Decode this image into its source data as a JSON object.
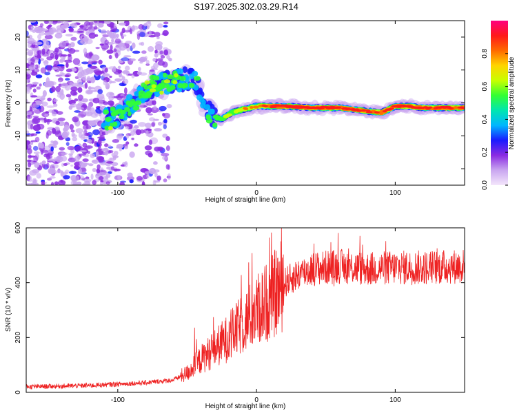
{
  "title": "S197.2025.302.03.29.R14",
  "chart_data": [
    {
      "type": "heatmap",
      "name": "spectrogram",
      "xlabel": "Height of straight line (km)",
      "ylabel": "Frequency (Hz)",
      "xlim": [
        -166,
        150
      ],
      "ylim": [
        -25,
        25
      ],
      "xticks": [
        -100,
        0,
        100
      ],
      "yticks": [
        -20,
        -10,
        0,
        10,
        20
      ],
      "xtick_labels": [
        "-100",
        "0",
        "100"
      ],
      "ytick_labels": [
        "-20",
        "-10",
        "0",
        "10",
        "20"
      ],
      "colorbar": {
        "label": "Normalized spectral amplitude",
        "range": [
          0,
          1
        ],
        "ticks": [
          0.0,
          0.2,
          0.4,
          0.6,
          0.8
        ],
        "tick_labels": [
          "0.0",
          "0.2",
          "0.4",
          "0.6",
          "0.8"
        ],
        "colors": [
          "#f4e6fb",
          "#c9a6f0",
          "#8a2be2",
          "#1a1aff",
          "#00b7ff",
          "#00e6b0",
          "#33ff33",
          "#c8ff00",
          "#ffd400",
          "#ff6a00",
          "#ff1a1a",
          "#ff007f"
        ]
      },
      "ridge": {
        "x": [
          -105,
          -95,
          -85,
          -75,
          -65,
          -55,
          -45,
          -38,
          -32,
          -25,
          -18,
          -10,
          0,
          10,
          20,
          40,
          60,
          70,
          80,
          90,
          95,
          100,
          110,
          120,
          130,
          140,
          148
        ],
        "y": [
          -5,
          -2,
          2,
          5,
          6,
          7,
          8,
          0,
          -4,
          -5,
          -3,
          -2,
          -1,
          -1,
          -1,
          -1.5,
          -1.5,
          -2,
          -2.5,
          -3,
          -2,
          -1,
          -1,
          -1.5,
          -1.5,
          -1.5,
          -1.5
        ],
        "amplitude": [
          0.5,
          0.45,
          0.5,
          0.55,
          0.5,
          0.55,
          0.4,
          0.4,
          0.45,
          0.5,
          0.55,
          0.6,
          0.7,
          0.8,
          0.85,
          0.95,
          0.9,
          0.85,
          0.8,
          0.75,
          0.8,
          0.85,
          0.9,
          0.85,
          0.85,
          0.85,
          0.85
        ]
      }
    },
    {
      "type": "line",
      "name": "snr",
      "xlabel": "Height of straight line (km)",
      "ylabel": "SNR (10 * v/v)",
      "xlim": [
        -166,
        150
      ],
      "ylim": [
        0,
        600
      ],
      "xticks": [
        -100,
        0,
        100
      ],
      "yticks": [
        0,
        200,
        400,
        600
      ],
      "xtick_labels": [
        "-100",
        "0",
        "100"
      ],
      "ytick_labels": [
        "0",
        "200",
        "400",
        "600"
      ],
      "color": "#ee2222",
      "trend": {
        "x": [
          -166,
          -120,
          -100,
          -80,
          -60,
          -50,
          -40,
          -30,
          -20,
          -10,
          0,
          10,
          20,
          30,
          40,
          60,
          80,
          100,
          120,
          150
        ],
        "y": [
          20,
          25,
          30,
          35,
          45,
          70,
          120,
          160,
          200,
          250,
          300,
          340,
          400,
          430,
          450,
          460,
          450,
          455,
          455,
          460
        ]
      }
    }
  ]
}
